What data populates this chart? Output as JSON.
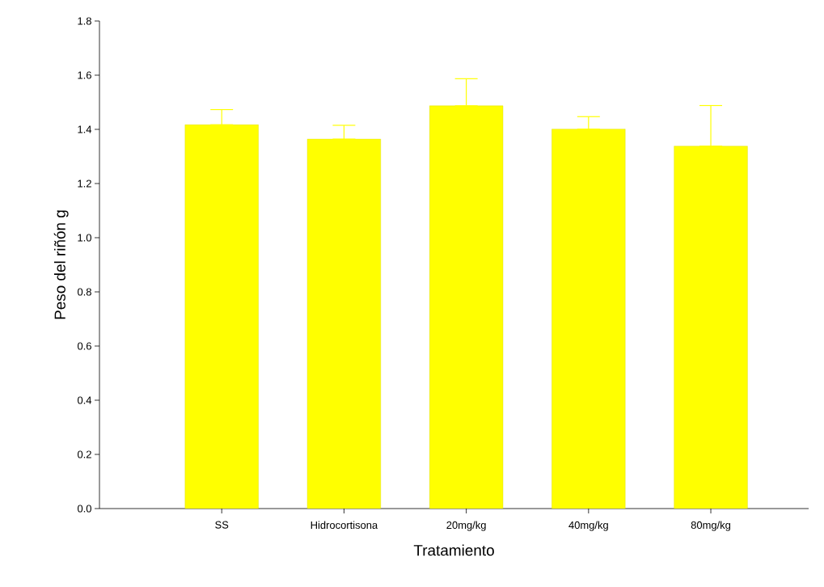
{
  "chart_data": {
    "type": "bar",
    "xlabel": "Tratamiento",
    "ylabel": "Peso del  riñón g",
    "categories": [
      "SS",
      "Hidrocortisona",
      "20mg/kg",
      "40mg/kg",
      "80mg/kg"
    ],
    "values": [
      1.417,
      1.364,
      1.487,
      1.401,
      1.338
    ],
    "errors": [
      [
        1.417,
        1.473
      ],
      [
        1.364,
        1.415
      ],
      [
        1.487,
        1.587
      ],
      [
        1.401,
        1.447
      ],
      [
        1.338,
        1.488
      ]
    ],
    "color": "#ffff00",
    "ylim": [
      0,
      1.8
    ],
    "yticks": [
      {
        "value": 0,
        "label": "0.0"
      },
      {
        "value": 0.2,
        "label": "0.2"
      },
      {
        "value": 0.4,
        "label": "0.4"
      },
      {
        "value": 0.6,
        "label": "0.6"
      },
      {
        "value": 0.8,
        "label": "0.8"
      },
      {
        "value": 1,
        "label": "1.0"
      },
      {
        "value": 1.2,
        "label": "1.2"
      },
      {
        "value": 1.4,
        "label": "1.4"
      },
      {
        "value": 1.6,
        "label": "1.6"
      },
      {
        "value": 1.8,
        "label": "1.8"
      }
    ],
    "grid": false
  }
}
